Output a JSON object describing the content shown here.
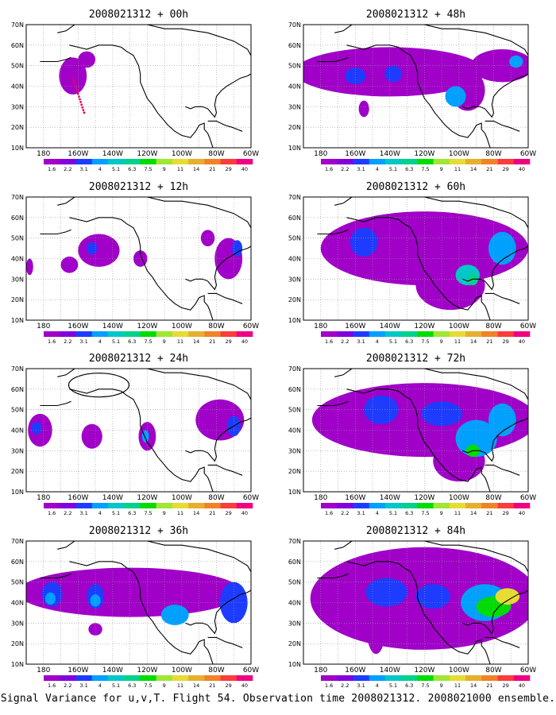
{
  "run": "2008021312",
  "panels": [
    {
      "title": "2008021312 + 00h",
      "lead_hours": 0
    },
    {
      "title": "2008021312 + 48h",
      "lead_hours": 48
    },
    {
      "title": "2008021312 + 12h",
      "lead_hours": 12
    },
    {
      "title": "2008021312 + 60h",
      "lead_hours": 60
    },
    {
      "title": "2008021312 + 24h",
      "lead_hours": 24
    },
    {
      "title": "2008021312 + 72h",
      "lead_hours": 72
    },
    {
      "title": "2008021312 + 36h",
      "lead_hours": 36
    },
    {
      "title": "2008021312 + 84h",
      "lead_hours": 84
    }
  ],
  "lon_ticks": [
    "180",
    "160W",
    "140W",
    "120W",
    "100W",
    "80W",
    "60W"
  ],
  "lat_ticks": [
    "70N",
    "60N",
    "50N",
    "40N",
    "30N",
    "20N",
    "10N"
  ],
  "map_extent": {
    "lon_min": 170,
    "lon_max": 300,
    "lat_min": 10,
    "lat_max": 70
  },
  "colorbar": {
    "labels": [
      "1.6",
      "2.2",
      "3.1",
      "4",
      "5.1",
      "6.3",
      "7.5",
      "9",
      "11",
      "14",
      "21",
      "29",
      "40"
    ],
    "colors": [
      "#a000c8",
      "#8200dc",
      "#1e3cff",
      "#00a0ff",
      "#00c8c8",
      "#00d28c",
      "#00dc00",
      "#a0e632",
      "#e6dc32",
      "#e6af2d",
      "#f08228",
      "#fa3c3c",
      "#f00082"
    ]
  },
  "caption": "Signal Variance for u,v,T. Flight 54. Observation time 2008021312. 2008021000 ensemble."
}
